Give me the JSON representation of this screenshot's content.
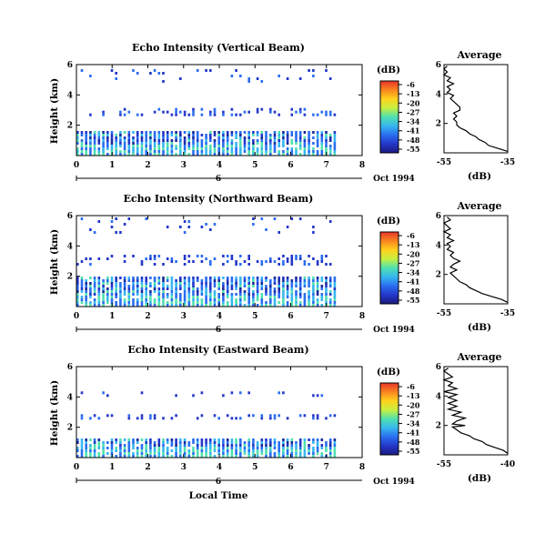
{
  "x_axis_label": "Local Time",
  "date_label": "Oct 1994",
  "colorbar_unit": "(dB)",
  "colorbar_ticks": [
    "-6",
    "-13",
    "-20",
    "-27",
    "-34",
    "-41",
    "-48",
    "-55"
  ],
  "colorbar_colors": [
    "#e8352a",
    "#f8851f",
    "#ffd21e",
    "#c8f040",
    "#4fe0b0",
    "#37b7ee",
    "#2a6df0",
    "#2437c8",
    "#1a1a80"
  ],
  "chart_data": [
    {
      "type": "heatmap",
      "title": "Echo Intensity (Vertical Beam)",
      "ylabel": "Height (km)",
      "xlim": [
        0,
        8
      ],
      "ylim": [
        0,
        6
      ],
      "x_ticks": [
        "0",
        "1",
        "2",
        "3",
        "4",
        "5",
        "6",
        "7",
        "8"
      ],
      "y_ticks": [
        "6",
        "4",
        "2"
      ],
      "day_marker": "6",
      "data_end_hour": 7.3,
      "colorbar_range_db": [
        -55,
        -6
      ],
      "echo_layers_km": [
        [
          0,
          1.5
        ],
        [
          2.6,
          3.0
        ],
        [
          4.8,
          5.6
        ]
      ],
      "profile": {
        "title": "Average",
        "xlabel": "(dB)",
        "x_ticks": [
          "-55",
          "-35"
        ],
        "y_ticks": [
          "6",
          "4",
          "2"
        ],
        "xlim": [
          -55,
          -35
        ],
        "ylim": [
          0,
          6
        ],
        "points": [
          [
            -35,
            0.1
          ],
          [
            -38,
            0.3
          ],
          [
            -41,
            0.5
          ],
          [
            -42,
            0.7
          ],
          [
            -44,
            0.9
          ],
          [
            -45,
            1.1
          ],
          [
            -47,
            1.3
          ],
          [
            -48,
            1.5
          ],
          [
            -50,
            1.7
          ],
          [
            -51,
            1.9
          ],
          [
            -51,
            2.1
          ],
          [
            -52,
            2.3
          ],
          [
            -51,
            2.5
          ],
          [
            -52,
            2.7
          ],
          [
            -50,
            2.9
          ],
          [
            -50,
            3.1
          ],
          [
            -51,
            3.3
          ],
          [
            -52,
            3.5
          ],
          [
            -53,
            3.7
          ],
          [
            -52,
            3.9
          ],
          [
            -54,
            4.1
          ],
          [
            -53,
            4.3
          ],
          [
            -54,
            4.5
          ],
          [
            -52,
            4.7
          ],
          [
            -54,
            4.9
          ],
          [
            -53,
            5.1
          ],
          [
            -55,
            5.3
          ],
          [
            -54,
            5.5
          ],
          [
            -55,
            5.7
          ],
          [
            -54,
            5.9
          ]
        ]
      }
    },
    {
      "type": "heatmap",
      "title": "Echo Intensity (Northward Beam)",
      "ylabel": "Height (km)",
      "xlim": [
        0,
        8
      ],
      "ylim": [
        0,
        6
      ],
      "x_ticks": [
        "0",
        "1",
        "2",
        "3",
        "4",
        "5",
        "6",
        "7",
        "8"
      ],
      "y_ticks": [
        "6",
        "4",
        "2"
      ],
      "day_marker": "6",
      "data_end_hour": 7.3,
      "colorbar_range_db": [
        -55,
        -6
      ],
      "echo_layers_km": [
        [
          0,
          1.8
        ],
        [
          2.7,
          3.3
        ],
        [
          4.8,
          5.8
        ]
      ],
      "profile": {
        "title": "Average",
        "xlabel": "(dB)",
        "x_ticks": [
          "-55",
          "-35"
        ],
        "y_ticks": [
          "6",
          "4",
          "2"
        ],
        "xlim": [
          -55,
          -35
        ],
        "ylim": [
          0,
          6
        ],
        "points": [
          [
            -35,
            0.1
          ],
          [
            -37,
            0.3
          ],
          [
            -40,
            0.5
          ],
          [
            -43,
            0.7
          ],
          [
            -45,
            0.9
          ],
          [
            -47,
            1.1
          ],
          [
            -48,
            1.3
          ],
          [
            -50,
            1.5
          ],
          [
            -51,
            1.7
          ],
          [
            -52,
            1.9
          ],
          [
            -53,
            2.1
          ],
          [
            -51,
            2.3
          ],
          [
            -53,
            2.5
          ],
          [
            -52,
            2.7
          ],
          [
            -50,
            2.9
          ],
          [
            -52,
            3.1
          ],
          [
            -53,
            3.3
          ],
          [
            -52,
            3.5
          ],
          [
            -54,
            3.7
          ],
          [
            -53,
            3.9
          ],
          [
            -54,
            4.1
          ],
          [
            -52,
            4.3
          ],
          [
            -54,
            4.5
          ],
          [
            -53,
            4.7
          ],
          [
            -55,
            4.9
          ],
          [
            -53,
            5.1
          ],
          [
            -54,
            5.3
          ],
          [
            -55,
            5.5
          ],
          [
            -53,
            5.7
          ],
          [
            -54,
            5.9
          ]
        ]
      }
    },
    {
      "type": "heatmap",
      "title": "Echo Intensity (Eastward Beam)",
      "ylabel": "Height (km)",
      "xlim": [
        0,
        8
      ],
      "ylim": [
        0,
        6
      ],
      "x_ticks": [
        "0",
        "1",
        "2",
        "3",
        "4",
        "5",
        "6",
        "7",
        "8"
      ],
      "y_ticks": [
        "6",
        "4",
        "2"
      ],
      "day_marker": "6",
      "data_end_hour": 7.3,
      "colorbar_range_db": [
        -55,
        -6
      ],
      "echo_layers_km": [
        [
          0,
          1.2
        ],
        [
          2.5,
          2.7
        ],
        [
          4.0,
          4.3
        ]
      ],
      "profile": {
        "title": "Average",
        "xlabel": "(dB)",
        "x_ticks": [
          "-55",
          "-40"
        ],
        "y_ticks": [
          "6",
          "4",
          "2"
        ],
        "xlim": [
          -55,
          -40
        ],
        "ylim": [
          0,
          6
        ],
        "points": [
          [
            -40,
            0.1
          ],
          [
            -41,
            0.3
          ],
          [
            -43,
            0.5
          ],
          [
            -45,
            0.7
          ],
          [
            -46,
            0.9
          ],
          [
            -48,
            1.1
          ],
          [
            -49,
            1.3
          ],
          [
            -51,
            1.5
          ],
          [
            -52,
            1.7
          ],
          [
            -53,
            1.9
          ],
          [
            -50,
            2.0
          ],
          [
            -53,
            2.1
          ],
          [
            -52,
            2.3
          ],
          [
            -50,
            2.5
          ],
          [
            -53,
            2.7
          ],
          [
            -51,
            2.9
          ],
          [
            -54,
            3.1
          ],
          [
            -52,
            3.3
          ],
          [
            -54,
            3.5
          ],
          [
            -52,
            3.7
          ],
          [
            -54,
            3.9
          ],
          [
            -52,
            4.1
          ],
          [
            -55,
            4.3
          ],
          [
            -52,
            4.5
          ],
          [
            -54,
            4.7
          ],
          [
            -53,
            4.9
          ],
          [
            -55,
            5.1
          ],
          [
            -53,
            5.3
          ],
          [
            -54,
            5.5
          ],
          [
            -55,
            5.7
          ],
          [
            -54,
            5.9
          ]
        ]
      }
    }
  ]
}
